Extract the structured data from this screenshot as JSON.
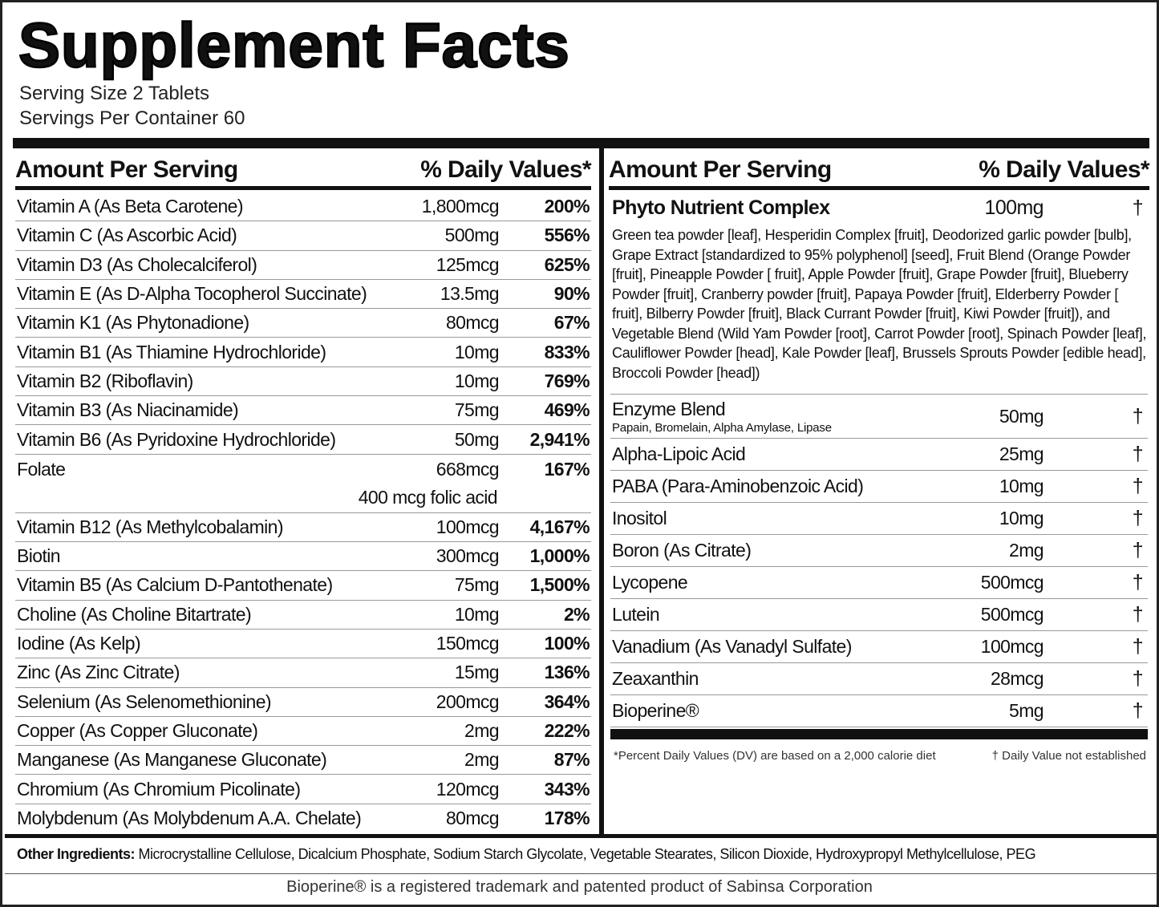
{
  "header": {
    "title": "Supplement Facts",
    "serving_size": "Serving Size 2 Tablets",
    "servings_per_container": "Servings Per Container 60"
  },
  "left_table": {
    "header": {
      "amount": "Amount Per Serving",
      "daily_value": "% Daily Values*"
    },
    "rows": [
      {
        "name": "Vitamin A (As Beta Carotene)",
        "amount": "1,800mcg",
        "daily_value": "200%"
      },
      {
        "name": "Vitamin C (As Ascorbic Acid)",
        "amount": "500mg",
        "daily_value": "556%"
      },
      {
        "name": "Vitamin D3 (As Cholecalciferol)",
        "amount": "125mcg",
        "daily_value": "625%"
      },
      {
        "name": "Vitamin E (As D-Alpha Tocopherol Succinate)",
        "amount": "13.5mg",
        "daily_value": "90%"
      },
      {
        "name": "Vitamin K1 (As Phytonadione)",
        "amount": "80mcg",
        "daily_value": "67%"
      },
      {
        "name": "Vitamin B1 (As Thiamine Hydrochloride)",
        "amount": "10mg",
        "daily_value": "833%"
      },
      {
        "name": "Vitamin B2 (Riboflavin)",
        "amount": "10mg",
        "daily_value": "769%"
      },
      {
        "name": "Vitamin B3 (As Niacinamide)",
        "amount": "75mg",
        "daily_value": "469%"
      },
      {
        "name": "Vitamin B6 (As Pyridoxine Hydrochloride)",
        "amount": "50mg",
        "daily_value": "2,941%"
      },
      {
        "name": "Folate",
        "amount": "668mcg",
        "daily_value": "167%",
        "note": "400 mcg folic acid"
      },
      {
        "name": "Vitamin B12 (As Methylcobalamin)",
        "amount": "100mcg",
        "daily_value": "4,167%"
      },
      {
        "name": "Biotin",
        "amount": "300mcg",
        "daily_value": "1,000%"
      },
      {
        "name": "Vitamin B5 (As Calcium D-Pantothenate)",
        "amount": "75mg",
        "daily_value": "1,500%"
      },
      {
        "name": "Choline (As Choline Bitartrate)",
        "amount": "10mg",
        "daily_value": "2%"
      },
      {
        "name": "Iodine (As Kelp)",
        "amount": "150mcg",
        "daily_value": "100%"
      },
      {
        "name": "Zinc (As Zinc Citrate)",
        "amount": "15mg",
        "daily_value": "136%"
      },
      {
        "name": "Selenium (As Selenomethionine)",
        "amount": "200mcg",
        "daily_value": "364%"
      },
      {
        "name": "Copper (As Copper Gluconate)",
        "amount": "2mg",
        "daily_value": "222%"
      },
      {
        "name": "Manganese (As Manganese Gluconate)",
        "amount": "2mg",
        "daily_value": "87%"
      },
      {
        "name": "Chromium (As Chromium Picolinate)",
        "amount": "120mcg",
        "daily_value": "343%"
      },
      {
        "name": "Molybdenum (As Molybdenum A.A. Chelate)",
        "amount": "80mcg",
        "daily_value": "178%"
      }
    ]
  },
  "right_table": {
    "header": {
      "amount": "Amount Per Serving",
      "daily_value": "% Daily Values*"
    },
    "complex": {
      "name": "Phyto Nutrient Complex",
      "amount": "100mg",
      "daily_value": "†",
      "ingredients": "Green tea powder [leaf], Hesperidin Complex [fruit], Deodorized garlic powder [bulb], Grape Extract [standardized to 95% polyphenol] [seed], Fruit Blend (Orange Powder [fruit], Pineapple Powder [ fruit], Apple Powder [fruit], Grape Powder [fruit], Blueberry Powder [fruit], Cranberry powder [fruit], Papaya Powder [fruit], Elderberry Powder [ fruit], Bilberry Powder [fruit], Black Currant Powder [fruit], Kiwi Powder [fruit]), and Vegetable Blend (Wild Yam Powder [root], Carrot Powder [root], Spinach Powder [leaf], Cauliflower Powder [head], Kale Powder [leaf], Brussels Sprouts Powder [edible head], Broccoli Powder [head])"
    },
    "rows": [
      {
        "name": "Enzyme Blend",
        "sub": "Papain, Bromelain, Alpha Amylase, Lipase",
        "amount": "50mg",
        "daily_value": "†"
      },
      {
        "name": "Alpha-Lipoic Acid",
        "amount": "25mg",
        "daily_value": "†"
      },
      {
        "name": "PABA (Para-Aminobenzoic Acid)",
        "amount": "10mg",
        "daily_value": "†"
      },
      {
        "name": "Inositol",
        "amount": "10mg",
        "daily_value": "†"
      },
      {
        "name": "Boron (As Citrate)",
        "amount": "2mg",
        "daily_value": "†"
      },
      {
        "name": "Lycopene",
        "amount": "500mcg",
        "daily_value": "†"
      },
      {
        "name": "Lutein",
        "amount": "500mcg",
        "daily_value": "†"
      },
      {
        "name": "Vanadium (As Vanadyl Sulfate)",
        "amount": "100mcg",
        "daily_value": "†"
      },
      {
        "name": "Zeaxanthin",
        "amount": "28mcg",
        "daily_value": "†"
      },
      {
        "name": "Bioperine®",
        "amount": "5mg",
        "daily_value": "†"
      }
    ],
    "footnotes": [
      "*Percent Daily Values (DV) are based on a 2,000 calorie diet",
      "† Daily Value not established"
    ]
  },
  "other_ingredients": {
    "label": "Other Ingredients:",
    "text": "Microcrystalline Cellulose, Dicalcium Phosphate, Sodium Starch Glycolate, Vegetable Stearates, Silicon Dioxide, Hydroxypropyl Methylcellulose, PEG"
  },
  "trademark": "Bioperine® is a registered trademark and patented product of Sabinsa Corporation"
}
